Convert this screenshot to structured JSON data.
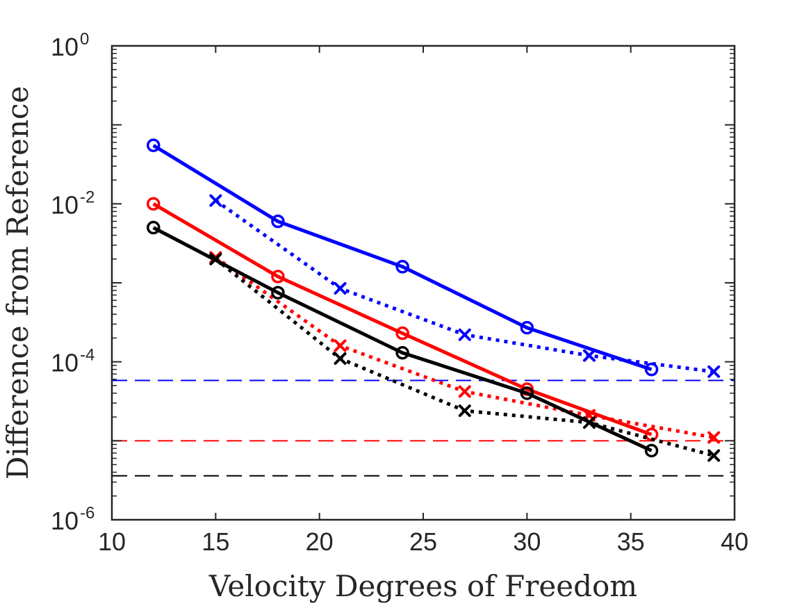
{
  "chart_data": {
    "type": "line",
    "title": "",
    "xlabel": "Velocity Degrees of Freedom",
    "ylabel": "Difference from Reference",
    "xlim": [
      10,
      40
    ],
    "ylim": [
      1e-06,
      1
    ],
    "yscale": "log",
    "grid": false,
    "x_ticks": [
      "10",
      "15",
      "20",
      "25",
      "30",
      "35",
      "40"
    ],
    "y_ticks": [
      {
        "base": "10",
        "exp": "-6",
        "value": 1e-06
      },
      {
        "base": "10",
        "exp": "-4",
        "value": 0.0001
      },
      {
        "base": "10",
        "exp": "-2",
        "value": 0.01
      },
      {
        "base": "10",
        "exp": "0",
        "value": 1
      }
    ],
    "series": [
      {
        "name": "blue-solid-circle",
        "color": "#0000ff",
        "style": "solid",
        "marker": "circle",
        "x": [
          12,
          18,
          24,
          30,
          36
        ],
        "y": [
          0.055,
          0.006,
          0.0016,
          0.00027,
          8e-05
        ]
      },
      {
        "name": "blue-dotted-cross",
        "color": "#0000ff",
        "style": "dotted",
        "marker": "x",
        "x": [
          15,
          21,
          27,
          33,
          39
        ],
        "y": [
          0.011,
          0.00085,
          0.00022,
          0.00012,
          7.5e-05
        ]
      },
      {
        "name": "red-solid-circle",
        "color": "#ff0000",
        "style": "solid",
        "marker": "circle",
        "x": [
          12,
          18,
          24,
          30,
          36
        ],
        "y": [
          0.01,
          0.0012,
          0.00023,
          4.5e-05,
          1.2e-05
        ]
      },
      {
        "name": "red-dotted-cross",
        "color": "#ff0000",
        "style": "dotted",
        "marker": "x",
        "x": [
          15,
          21,
          27,
          33,
          39
        ],
        "y": [
          0.0021,
          0.00016,
          4.2e-05,
          2.1e-05,
          1.1e-05
        ]
      },
      {
        "name": "black-solid-circle",
        "color": "#000000",
        "style": "solid",
        "marker": "circle",
        "x": [
          12,
          18,
          24,
          30,
          36
        ],
        "y": [
          0.005,
          0.00075,
          0.00013,
          4e-05,
          7.5e-06
        ]
      },
      {
        "name": "black-dotted-cross",
        "color": "#000000",
        "style": "dotted",
        "marker": "x",
        "x": [
          15,
          21,
          27,
          33,
          39
        ],
        "y": [
          0.002,
          0.00011,
          2.4e-05,
          1.7e-05,
          6.5e-06
        ]
      }
    ],
    "reference_lines": [
      {
        "name": "blue-reference",
        "color": "#0000ff",
        "y": 5.8e-05
      },
      {
        "name": "red-reference",
        "color": "#ff0000",
        "y": 1e-05
      },
      {
        "name": "black-reference",
        "color": "#000000",
        "y": 3.6e-06
      }
    ]
  }
}
